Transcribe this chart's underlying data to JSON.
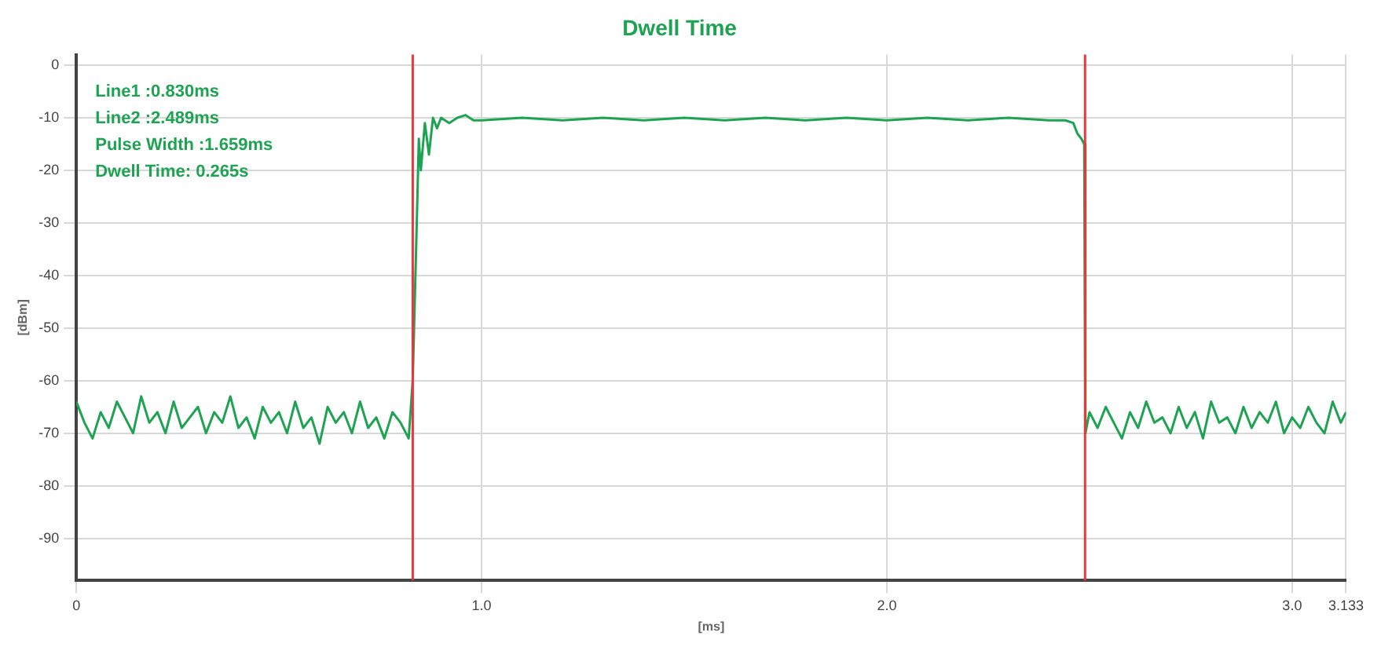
{
  "chart_data": {
    "type": "line",
    "title": "Dwell Time",
    "xlabel": "[ms]",
    "ylabel": "[dBm]",
    "annotations": [
      "Line1 :0.830ms",
      "Line2 :2.489ms",
      "Pulse Width :1.659ms",
      "Dwell Time: 0.265s"
    ],
    "xlim": [
      0,
      3.133
    ],
    "xticks": [
      {
        "value": 0,
        "label": "0"
      },
      {
        "value": 1,
        "label": "1.0"
      },
      {
        "value": 2,
        "label": "2.0"
      },
      {
        "value": 3,
        "label": "3.0"
      },
      3.133
    ],
    "ylim": [
      -98,
      2
    ],
    "yticks": [
      0,
      -10,
      -20,
      -30,
      -40,
      -50,
      -60,
      -70,
      -80,
      -90
    ],
    "grid": true,
    "marker": "none",
    "line_style": "solid",
    "legend": false,
    "ref_lines": [
      {
        "axis": "x",
        "value": 0.83,
        "color": "#e8383d"
      },
      {
        "axis": "x",
        "value": 2.489,
        "color": "#e8383d"
      }
    ],
    "series": [
      {
        "color": "#1ea352",
        "x": [
          0,
          0.02,
          0.04,
          0.06,
          0.08,
          0.1,
          0.12,
          0.14,
          0.16,
          0.18,
          0.2,
          0.22,
          0.24,
          0.26,
          0.28,
          0.3,
          0.32,
          0.34,
          0.36,
          0.38,
          0.4,
          0.42,
          0.44,
          0.46,
          0.48,
          0.5,
          0.52,
          0.54,
          0.56,
          0.58,
          0.6,
          0.62,
          0.64,
          0.66,
          0.68,
          0.7,
          0.72,
          0.74,
          0.76,
          0.78,
          0.8,
          0.82,
          0.83,
          0.84,
          0.845,
          0.85,
          0.86,
          0.87,
          0.88,
          0.89,
          0.9,
          0.92,
          0.94,
          0.96,
          0.98,
          1.0,
          1.1,
          1.2,
          1.3,
          1.4,
          1.5,
          1.6,
          1.7,
          1.8,
          1.9,
          2.0,
          2.1,
          2.2,
          2.3,
          2.4,
          2.44,
          2.46,
          2.47,
          2.48,
          2.487,
          2.49,
          2.5,
          2.52,
          2.54,
          2.56,
          2.58,
          2.6,
          2.62,
          2.64,
          2.66,
          2.68,
          2.7,
          2.72,
          2.74,
          2.76,
          2.78,
          2.8,
          2.82,
          2.84,
          2.86,
          2.88,
          2.9,
          2.92,
          2.94,
          2.96,
          2.98,
          3.0,
          3.02,
          3.04,
          3.06,
          3.08,
          3.1,
          3.12,
          3.133
        ],
        "values": [
          -64,
          -68,
          -71,
          -66,
          -69,
          -64,
          -67,
          -70,
          -63,
          -68,
          -66,
          -70,
          -64,
          -69,
          -67,
          -65,
          -70,
          -66,
          -68,
          -63,
          -69,
          -67,
          -71,
          -65,
          -68,
          -66,
          -70,
          -64,
          -69,
          -67,
          -72,
          -65,
          -68,
          -66,
          -70,
          -64,
          -69,
          -67,
          -71,
          -66,
          -68,
          -71,
          -60,
          -30,
          -14,
          -20,
          -11,
          -17,
          -10,
          -12,
          -10,
          -11,
          -10,
          -9.5,
          -10.5,
          -10.5,
          -10,
          -10.5,
          -10,
          -10.5,
          -10,
          -10.5,
          -10,
          -10.5,
          -10,
          -10.5,
          -10,
          -10.5,
          -10,
          -10.5,
          -10.5,
          -11,
          -13,
          -14,
          -15,
          -70,
          -66,
          -69,
          -65,
          -68,
          -71,
          -66,
          -69,
          -64,
          -68,
          -67,
          -70,
          -65,
          -69,
          -66,
          -71,
          -64,
          -68,
          -67,
          -70,
          -65,
          -69,
          -66,
          -68,
          -64,
          -70,
          -67,
          -69,
          -65,
          -68,
          -70,
          -64,
          -68,
          -66
        ]
      }
    ]
  }
}
